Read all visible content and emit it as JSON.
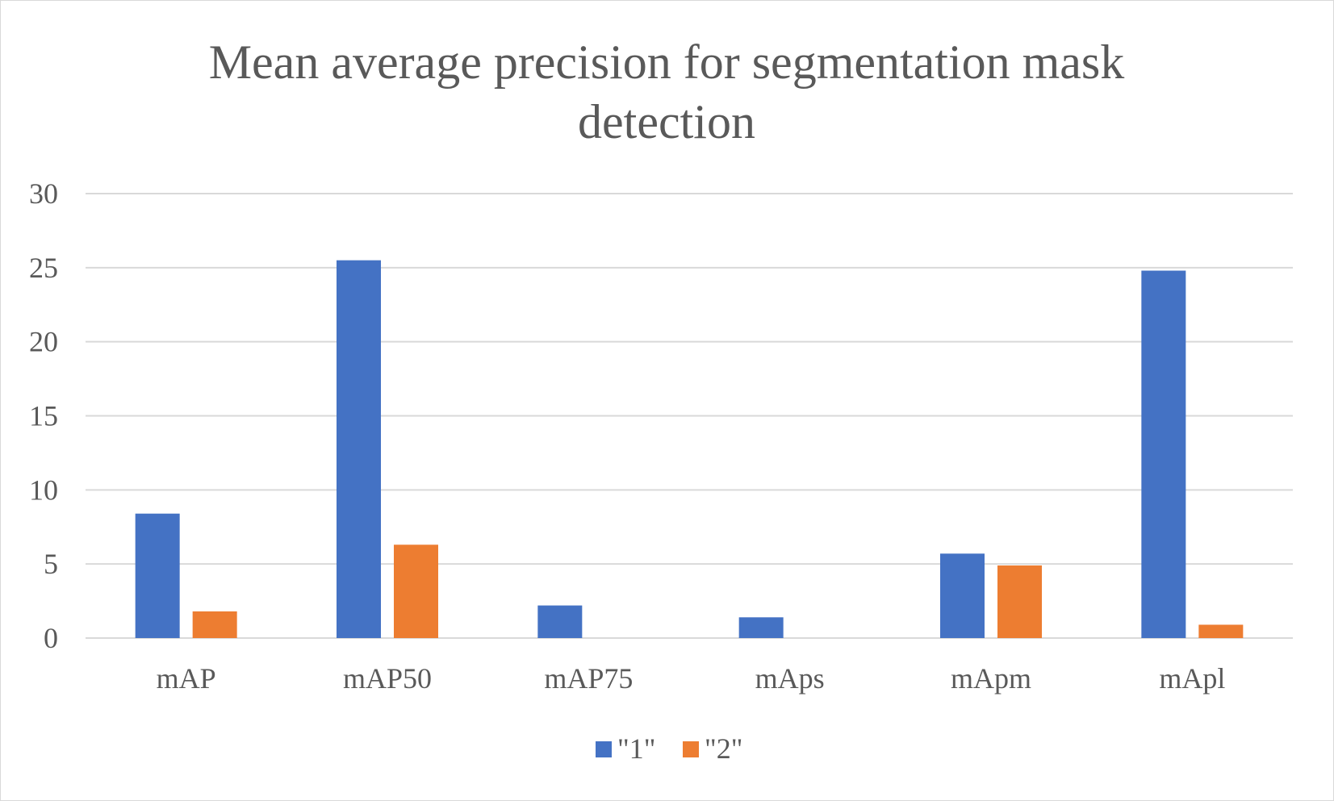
{
  "chart_data": {
    "type": "bar",
    "title_lines": [
      "Mean average precision for segmentation mask",
      "detection"
    ],
    "xlabel": "",
    "ylabel": "",
    "categories": [
      "mAP",
      "mAP50",
      "mAP75",
      "mAps",
      "mApm",
      "mApl"
    ],
    "series": [
      {
        "name": "\"1\"",
        "color": "#4472c4",
        "values": [
          8.4,
          25.5,
          2.2,
          1.4,
          5.7,
          24.8
        ]
      },
      {
        "name": "\"2\"",
        "color": "#ed7d31",
        "values": [
          1.8,
          6.3,
          0,
          0,
          4.9,
          0.9
        ]
      }
    ],
    "ylim": [
      0,
      30
    ],
    "yticks": [
      0,
      5,
      10,
      15,
      20,
      25,
      30
    ],
    "grid": true,
    "legend_position": "bottom"
  }
}
